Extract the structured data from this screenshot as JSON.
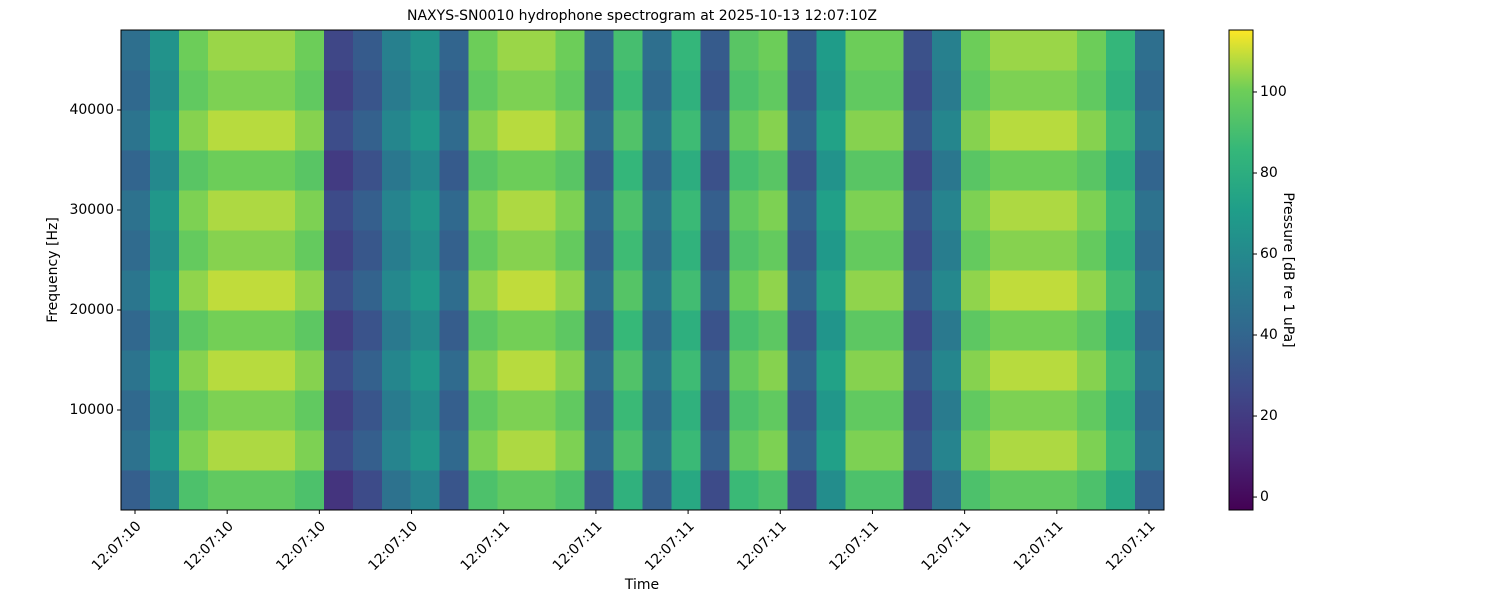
{
  "chart_data": {
    "type": "heatmap",
    "title": "NAXYS-SN0010 hydrophone spectrogram at 2025-10-13 12:07:10Z",
    "xlabel": "Time",
    "ylabel": "Frequency [Hz]",
    "colorbar_label": "Pressure [dB re 1 uPa]",
    "colormap": "viridis",
    "xticks": [
      "12:07:10",
      "12:07:10",
      "12:07:10",
      "12:07:10",
      "12:07:11",
      "12:07:11",
      "12:07:11",
      "12:07:11",
      "12:07:11",
      "12:07:11",
      "12:07:11",
      "12:07:11"
    ],
    "ylim": [
      0,
      48000
    ],
    "yticks": [
      10000,
      20000,
      30000,
      40000
    ],
    "clim": [
      -3.2,
      115.3
    ],
    "cticks": [
      0,
      20,
      40,
      60,
      80,
      100
    ],
    "values": [
      [
        37,
        57,
        92,
        97,
        97,
        97,
        92,
        17,
        27,
        47,
        57,
        32,
        92,
        97,
        97,
        92,
        32,
        82,
        37,
        77,
        27,
        87,
        92,
        27,
        62,
        92,
        92,
        22,
        47,
        92,
        97,
        97,
        97,
        92,
        77,
        37
      ],
      [
        47,
        67,
        102,
        107,
        107,
        107,
        102,
        27,
        37,
        57,
        67,
        42,
        102,
        107,
        107,
        102,
        42,
        92,
        47,
        87,
        37,
        97,
        102,
        37,
        72,
        102,
        102,
        32,
        57,
        102,
        107,
        107,
        107,
        102,
        87,
        47
      ],
      [
        42,
        62,
        97,
        102,
        102,
        102,
        97,
        22,
        32,
        52,
        62,
        37,
        97,
        102,
        102,
        97,
        37,
        87,
        42,
        82,
        32,
        92,
        97,
        32,
        67,
        97,
        97,
        27,
        52,
        97,
        102,
        102,
        102,
        97,
        82,
        42
      ],
      [
        48,
        68,
        103,
        108,
        108,
        108,
        103,
        28,
        38,
        58,
        68,
        43,
        103,
        108,
        108,
        103,
        43,
        93,
        48,
        88,
        38,
        98,
        103,
        38,
        73,
        103,
        103,
        33,
        58,
        103,
        108,
        108,
        108,
        103,
        88,
        48
      ],
      [
        41,
        61,
        96,
        101,
        101,
        101,
        96,
        21,
        31,
        51,
        61,
        36,
        96,
        101,
        101,
        96,
        36,
        86,
        41,
        81,
        31,
        91,
        96,
        31,
        66,
        96,
        96,
        26,
        51,
        96,
        101,
        101,
        101,
        96,
        81,
        41
      ],
      [
        49,
        69,
        104,
        109,
        109,
        109,
        104,
        29,
        39,
        59,
        69,
        44,
        104,
        109,
        109,
        104,
        44,
        94,
        49,
        89,
        39,
        99,
        104,
        39,
        74,
        104,
        104,
        34,
        59,
        104,
        109,
        109,
        109,
        104,
        89,
        49
      ],
      [
        43,
        63,
        98,
        103,
        103,
        103,
        98,
        23,
        33,
        53,
        63,
        38,
        98,
        103,
        103,
        98,
        38,
        88,
        43,
        83,
        33,
        93,
        98,
        33,
        68,
        98,
        98,
        28,
        53,
        98,
        103,
        103,
        103,
        98,
        83,
        43
      ],
      [
        47,
        67,
        102,
        107,
        107,
        107,
        102,
        27,
        37,
        57,
        67,
        42,
        102,
        107,
        107,
        102,
        42,
        92,
        47,
        87,
        37,
        97,
        102,
        37,
        72,
        102,
        102,
        32,
        57,
        102,
        107,
        107,
        107,
        102,
        87,
        47
      ],
      [
        40,
        60,
        95,
        100,
        100,
        100,
        95,
        20,
        30,
        50,
        60,
        35,
        95,
        100,
        100,
        95,
        35,
        85,
        40,
        80,
        30,
        90,
        95,
        30,
        65,
        95,
        95,
        25,
        50,
        95,
        100,
        100,
        100,
        95,
        80,
        40
      ],
      [
        48,
        68,
        103,
        108,
        108,
        108,
        103,
        28,
        38,
        58,
        68,
        43,
        103,
        108,
        108,
        103,
        43,
        93,
        48,
        88,
        38,
        98,
        103,
        38,
        73,
        103,
        103,
        33,
        58,
        103,
        108,
        108,
        108,
        103,
        88,
        48
      ],
      [
        42,
        62,
        97,
        102,
        102,
        102,
        97,
        22,
        32,
        52,
        62,
        37,
        97,
        102,
        102,
        97,
        37,
        87,
        42,
        82,
        32,
        92,
        97,
        32,
        67,
        97,
        97,
        27,
        52,
        97,
        102,
        102,
        102,
        97,
        82,
        42
      ],
      [
        45,
        65,
        100,
        105,
        105,
        105,
        100,
        25,
        35,
        55,
        65,
        40,
        100,
        105,
        105,
        100,
        40,
        90,
        45,
        85,
        35,
        95,
        100,
        35,
        70,
        100,
        100,
        30,
        55,
        100,
        105,
        105,
        105,
        100,
        85,
        45
      ]
    ]
  }
}
